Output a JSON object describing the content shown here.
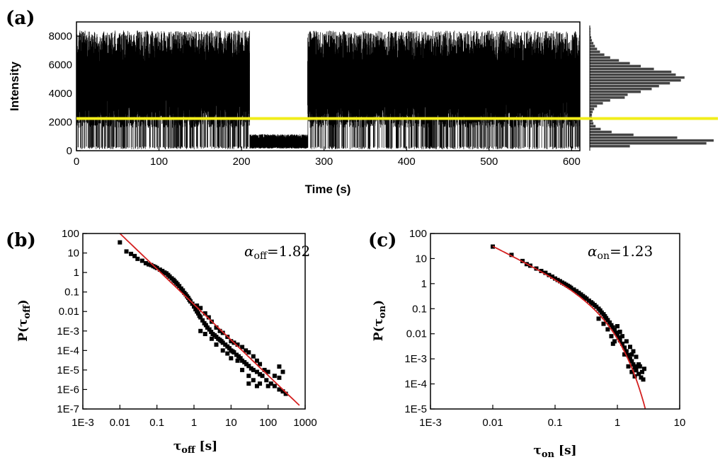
{
  "chart_data": [
    {
      "panel": "(a)",
      "type": "line",
      "xlabel": "Time (s)",
      "ylabel": "Intensity",
      "xlim": [
        0,
        610
      ],
      "ylim": [
        0,
        9000
      ],
      "xticks": [
        "0",
        "100",
        "200",
        "300",
        "400",
        "500",
        "600"
      ],
      "yticks": [
        "0",
        "2000",
        "4000",
        "6000",
        "8000"
      ],
      "threshold": 2250,
      "threshold_color": "#f2ee1a",
      "segments": [
        {
          "t_start": 0,
          "t_end": 210,
          "state": "blinking",
          "on_level": 5400,
          "off_level": 400
        },
        {
          "t_start": 210,
          "t_end": 280,
          "state": "off",
          "level": 600
        },
        {
          "t_start": 280,
          "t_end": 610,
          "state": "blinking",
          "on_level": 5400,
          "off_level": 400
        }
      ],
      "histogram": {
        "bins": [
          300,
          500,
          700,
          900,
          1100,
          1300,
          1500,
          1700,
          1900,
          2100,
          2300,
          2500,
          2700,
          2900,
          3100,
          3300,
          3500,
          3700,
          3900,
          4100,
          4300,
          4500,
          4700,
          4900,
          5100,
          5300,
          5500,
          5700,
          5900,
          6100,
          6300,
          6500,
          6700,
          6900,
          7100,
          7300,
          7500,
          7700,
          7900,
          8100,
          8300,
          8500
        ],
        "counts": [
          55,
          160,
          170,
          120,
          60,
          30,
          15,
          8,
          5,
          4,
          3,
          3,
          4,
          6,
          10,
          18,
          28,
          48,
          52,
          70,
          85,
          95,
          110,
          125,
          130,
          118,
          112,
          88,
          70,
          55,
          40,
          28,
          20,
          14,
          10,
          7,
          5,
          3,
          2,
          1,
          1,
          1
        ]
      }
    },
    {
      "panel": "(b)",
      "type": "scatter",
      "xlabel_main": "τ",
      "xlabel_sub": "off",
      "xlabel_unit": " [s]",
      "ylabel_main": "P",
      "ylabel_arg": "τ",
      "ylabel_sub": "off",
      "x_scale": "log",
      "y_scale": "log",
      "xlim": [
        0.001,
        1000
      ],
      "ylim": [
        1e-07,
        100
      ],
      "xticks": [
        "1E-3",
        "0.01",
        "0.1",
        "1",
        "10",
        "100",
        "1000"
      ],
      "yticks": [
        "1E-7",
        "1E-6",
        "1E-5",
        "1E-4",
        "1E-3",
        "0.01",
        "0.1",
        "1",
        "10",
        "100"
      ],
      "annotation_symbol": "α",
      "annotation_sub": "off",
      "annotation_value": "=1.82",
      "fit": {
        "type": "power-law",
        "alpha": 1.82,
        "x_range": [
          0.01,
          700
        ],
        "color": "#d42020"
      },
      "points_description": "scatter of P vs tau_off following fit",
      "points": [
        [
          0.01,
          35
        ],
        [
          0.015,
          12
        ],
        [
          0.02,
          9
        ],
        [
          0.025,
          7
        ],
        [
          0.03,
          5
        ],
        [
          0.04,
          4
        ],
        [
          0.05,
          3
        ],
        [
          0.06,
          2.6
        ],
        [
          0.07,
          2.4
        ],
        [
          0.08,
          2.1
        ],
        [
          0.09,
          1.9
        ],
        [
          0.1,
          1.7
        ],
        [
          0.12,
          1.4
        ],
        [
          0.14,
          1.2
        ],
        [
          0.16,
          1.0
        ],
        [
          0.18,
          0.9
        ],
        [
          0.2,
          0.75
        ],
        [
          0.22,
          0.62
        ],
        [
          0.25,
          0.5
        ],
        [
          0.28,
          0.42
        ],
        [
          0.3,
          0.36
        ],
        [
          0.33,
          0.3
        ],
        [
          0.36,
          0.25
        ],
        [
          0.4,
          0.2
        ],
        [
          0.45,
          0.15
        ],
        [
          0.5,
          0.12
        ],
        [
          0.55,
          0.09
        ],
        [
          0.6,
          0.075
        ],
        [
          0.65,
          0.06
        ],
        [
          0.7,
          0.05
        ],
        [
          0.75,
          0.04
        ],
        [
          0.8,
          0.033
        ],
        [
          0.9,
          0.025
        ],
        [
          1.0,
          0.018
        ],
        [
          1.1,
          0.013
        ],
        [
          1.2,
          0.01
        ],
        [
          1.3,
          0.008
        ],
        [
          1.4,
          0.006
        ],
        [
          1.5,
          0.005
        ],
        [
          1.7,
          0.0035
        ],
        [
          1.9,
          0.0025
        ],
        [
          2.1,
          0.002
        ],
        [
          2.3,
          0.0015
        ],
        [
          2.6,
          0.0012
        ],
        [
          2.9,
          0.0009
        ],
        [
          3.2,
          0.0007
        ],
        [
          3.6,
          0.0006
        ],
        [
          4.0,
          0.0005
        ],
        [
          4.5,
          0.0004
        ],
        [
          5,
          0.00035
        ],
        [
          5.5,
          0.0003
        ],
        [
          6,
          0.00025
        ],
        [
          7,
          0.0002
        ],
        [
          8,
          0.00016
        ],
        [
          9,
          0.00013
        ],
        [
          10,
          0.0001
        ],
        [
          11,
          9e-05
        ],
        [
          12,
          8e-05
        ],
        [
          14,
          6e-05
        ],
        [
          16,
          5e-05
        ],
        [
          18,
          4e-05
        ],
        [
          20,
          3e-05
        ],
        [
          23,
          2.5e-05
        ],
        [
          26,
          2e-05
        ],
        [
          30,
          1.6e-05
        ],
        [
          35,
          1.2e-05
        ],
        [
          40,
          1e-05
        ],
        [
          50,
          8e-06
        ],
        [
          60,
          6e-06
        ],
        [
          70,
          5e-06
        ],
        [
          90,
          3e-06
        ],
        [
          120,
          2e-06
        ],
        [
          150,
          1.5e-06
        ],
        [
          200,
          1e-06
        ],
        [
          250,
          8e-07
        ],
        [
          300,
          6e-07
        ],
        [
          1.2,
          0.02
        ],
        [
          1.5,
          0.015
        ],
        [
          2,
          0.008
        ],
        [
          2.5,
          0.005
        ],
        [
          3,
          0.003
        ],
        [
          4,
          0.0015
        ],
        [
          5,
          0.001
        ],
        [
          6,
          0.0008
        ],
        [
          8,
          0.0005
        ],
        [
          10,
          0.0003
        ],
        [
          12,
          0.00025
        ],
        [
          15,
          0.0002
        ],
        [
          20,
          0.00015
        ],
        [
          25,
          0.0001
        ],
        [
          30,
          8e-05
        ],
        [
          40,
          5e-05
        ],
        [
          50,
          3e-05
        ],
        [
          60,
          2e-05
        ],
        [
          80,
          1e-05
        ],
        [
          100,
          8e-06
        ],
        [
          150,
          5e-06
        ],
        [
          200,
          4e-06
        ],
        [
          1.5,
          0.001
        ],
        [
          2,
          0.0007
        ],
        [
          3,
          0.0004
        ],
        [
          4,
          0.0002
        ],
        [
          6,
          0.0001
        ],
        [
          8,
          7e-05
        ],
        [
          10,
          4e-05
        ],
        [
          15,
          3e-05
        ],
        [
          20,
          1e-05
        ],
        [
          30,
          5e-06
        ],
        [
          40,
          3e-06
        ],
        [
          60,
          2e-06
        ],
        [
          100,
          1.5e-06
        ],
        [
          250,
          8e-06
        ],
        [
          200,
          1.5e-05
        ],
        [
          30,
          2e-06
        ],
        [
          50,
          1.5e-06
        ]
      ]
    },
    {
      "panel": "(c)",
      "type": "scatter",
      "xlabel_main": "τ",
      "xlabel_sub": "on",
      "xlabel_unit": " [s]",
      "ylabel_main": "P",
      "ylabel_arg": "τ",
      "ylabel_sub": "on",
      "x_scale": "log",
      "y_scale": "log",
      "xlim": [
        0.001,
        10
      ],
      "ylim": [
        1e-05,
        100
      ],
      "xticks": [
        "1E-3",
        "0.01",
        "0.1",
        "1",
        "10"
      ],
      "yticks": [
        "1E-5",
        "1E-4",
        "1E-3",
        "0.01",
        "0.1",
        "1",
        "10",
        "100"
      ],
      "annotation_symbol": "α",
      "annotation_sub": "on",
      "annotation_value": "=1.23",
      "fit": {
        "type": "truncated-power-law",
        "alpha": 1.23,
        "x_range": [
          0.01,
          2.8
        ],
        "color": "#d42020"
      },
      "points": [
        [
          0.01,
          30
        ],
        [
          0.02,
          14
        ],
        [
          0.03,
          8
        ],
        [
          0.035,
          6
        ],
        [
          0.04,
          5.2
        ],
        [
          0.05,
          4
        ],
        [
          0.06,
          3.2
        ],
        [
          0.07,
          2.7
        ],
        [
          0.08,
          2.2
        ],
        [
          0.09,
          1.9
        ],
        [
          0.1,
          1.6
        ],
        [
          0.11,
          1.4
        ],
        [
          0.12,
          1.25
        ],
        [
          0.13,
          1.1
        ],
        [
          0.14,
          1.0
        ],
        [
          0.15,
          0.9
        ],
        [
          0.16,
          0.82
        ],
        [
          0.17,
          0.75
        ],
        [
          0.18,
          0.68
        ],
        [
          0.2,
          0.58
        ],
        [
          0.22,
          0.5
        ],
        [
          0.24,
          0.43
        ],
        [
          0.26,
          0.37
        ],
        [
          0.28,
          0.32
        ],
        [
          0.3,
          0.28
        ],
        [
          0.32,
          0.25
        ],
        [
          0.35,
          0.21
        ],
        [
          0.38,
          0.18
        ],
        [
          0.4,
          0.16
        ],
        [
          0.43,
          0.14
        ],
        [
          0.46,
          0.12
        ],
        [
          0.5,
          0.1
        ],
        [
          0.53,
          0.085
        ],
        [
          0.56,
          0.07
        ],
        [
          0.6,
          0.06
        ],
        [
          0.63,
          0.05
        ],
        [
          0.66,
          0.042
        ],
        [
          0.7,
          0.035
        ],
        [
          0.75,
          0.028
        ],
        [
          0.8,
          0.022
        ],
        [
          0.85,
          0.018
        ],
        [
          0.9,
          0.014
        ],
        [
          0.95,
          0.011
        ],
        [
          1.0,
          0.009
        ],
        [
          1.05,
          0.007
        ],
        [
          1.1,
          0.0055
        ],
        [
          1.2,
          0.004
        ],
        [
          1.3,
          0.0028
        ],
        [
          1.4,
          0.002
        ],
        [
          1.5,
          0.0014
        ],
        [
          1.6,
          0.001
        ],
        [
          1.7,
          0.0008
        ],
        [
          1.8,
          0.0006
        ],
        [
          1.9,
          0.00045
        ],
        [
          2.0,
          0.00035
        ],
        [
          2.2,
          0.00025
        ],
        [
          2.4,
          0.00018
        ],
        [
          2.6,
          0.00015
        ],
        [
          2.7,
          0.0004
        ],
        [
          2.5,
          0.0003
        ],
        [
          2.2,
          0.0006
        ],
        [
          2.0,
          0.0005
        ],
        [
          1.9,
          0.0002
        ],
        [
          1.7,
          0.0003
        ],
        [
          1.8,
          0.002
        ],
        [
          1.6,
          0.003
        ],
        [
          1.4,
          0.005
        ],
        [
          1.2,
          0.008
        ],
        [
          1.1,
          0.012
        ],
        [
          1.0,
          0.02
        ],
        [
          0.9,
          0.005
        ],
        [
          0.8,
          0.008
        ],
        [
          0.85,
          0.004
        ],
        [
          1.5,
          0.0005
        ],
        [
          1.3,
          0.0015
        ],
        [
          1.7,
          0.0015
        ],
        [
          2.0,
          0.0012
        ],
        [
          2.3,
          0.0005
        ],
        [
          0.7,
          0.015
        ],
        [
          0.6,
          0.025
        ],
        [
          0.5,
          0.04
        ]
      ]
    }
  ]
}
